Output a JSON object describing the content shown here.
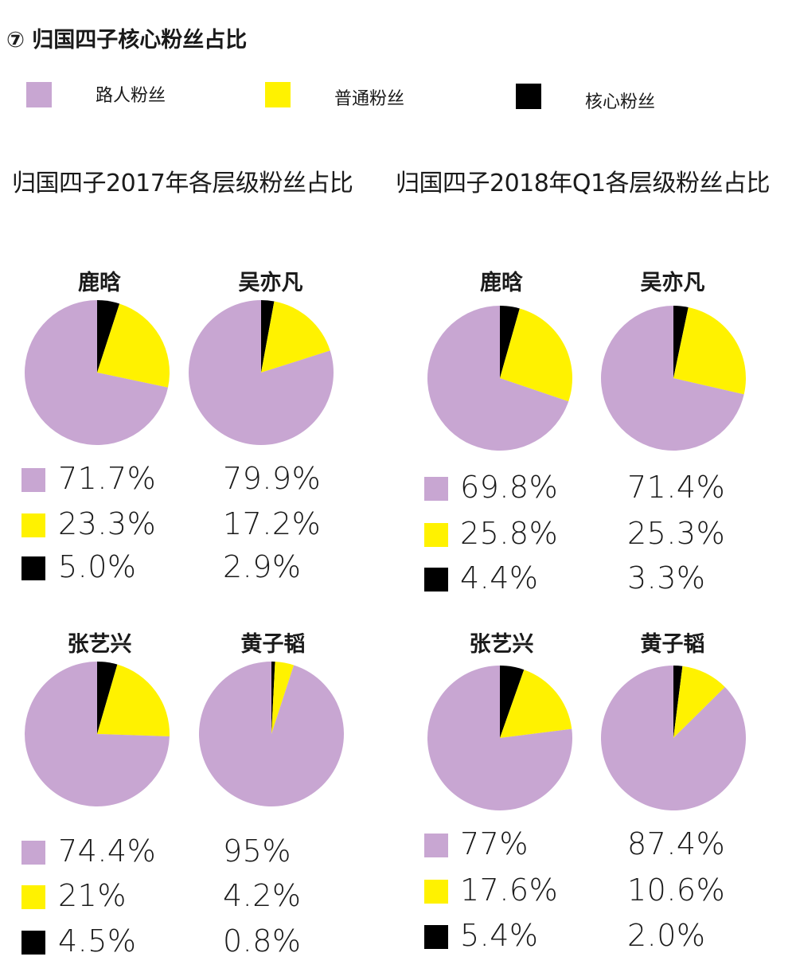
{
  "title": "⑦ 归国四子核心粉丝占比",
  "colors": {
    "passerby": "#c8a6d2",
    "ordinary": "#fff200",
    "core": "#000000"
  },
  "legend": [
    {
      "label": "路人粉丝",
      "color": "#c8a6d2"
    },
    {
      "label": "普通粉丝",
      "color": "#fff200"
    },
    {
      "label": "核心粉丝",
      "color": "#000000"
    }
  ],
  "chart_data": [
    {
      "type": "pie",
      "title": "归国四子2017年各层级粉丝占比",
      "categories": [
        "路人粉丝",
        "普通粉丝",
        "核心粉丝"
      ],
      "series": [
        {
          "name": "鹿晗",
          "values": [
            71.7,
            23.3,
            5.0
          ],
          "labels": [
            "71.7%",
            "23.3%",
            "5.0%"
          ]
        },
        {
          "name": "吴亦凡",
          "values": [
            79.9,
            17.2,
            2.9
          ],
          "labels": [
            "79.9%",
            "17.2%",
            "2.9%"
          ]
        },
        {
          "name": "张艺兴",
          "values": [
            74.4,
            21,
            4.5
          ],
          "labels": [
            "74.4%",
            "21%",
            "4.5%"
          ]
        },
        {
          "name": "黄子韬",
          "values": [
            95,
            4.2,
            0.8
          ],
          "labels": [
            "95%",
            "4.2%",
            "0.8%"
          ]
        }
      ]
    },
    {
      "type": "pie",
      "title": "归国四子2018年Q1各层级粉丝占比",
      "categories": [
        "路人粉丝",
        "普通粉丝",
        "核心粉丝"
      ],
      "series": [
        {
          "name": "鹿晗",
          "values": [
            69.8,
            25.8,
            4.4
          ],
          "labels": [
            "69.8%",
            "25.8%",
            "4.4%"
          ]
        },
        {
          "name": "吴亦凡",
          "values": [
            71.4,
            25.3,
            3.3
          ],
          "labels": [
            "71.4%",
            "25.3%",
            "3.3%"
          ]
        },
        {
          "name": "张艺兴",
          "values": [
            77,
            17.6,
            5.4
          ],
          "labels": [
            "77%",
            "17.6%",
            "5.4%"
          ]
        },
        {
          "name": "黄子韬",
          "values": [
            87.4,
            10.6,
            2.0
          ],
          "labels": [
            "87.4%",
            "10.6%",
            "2.0%"
          ]
        }
      ]
    }
  ]
}
